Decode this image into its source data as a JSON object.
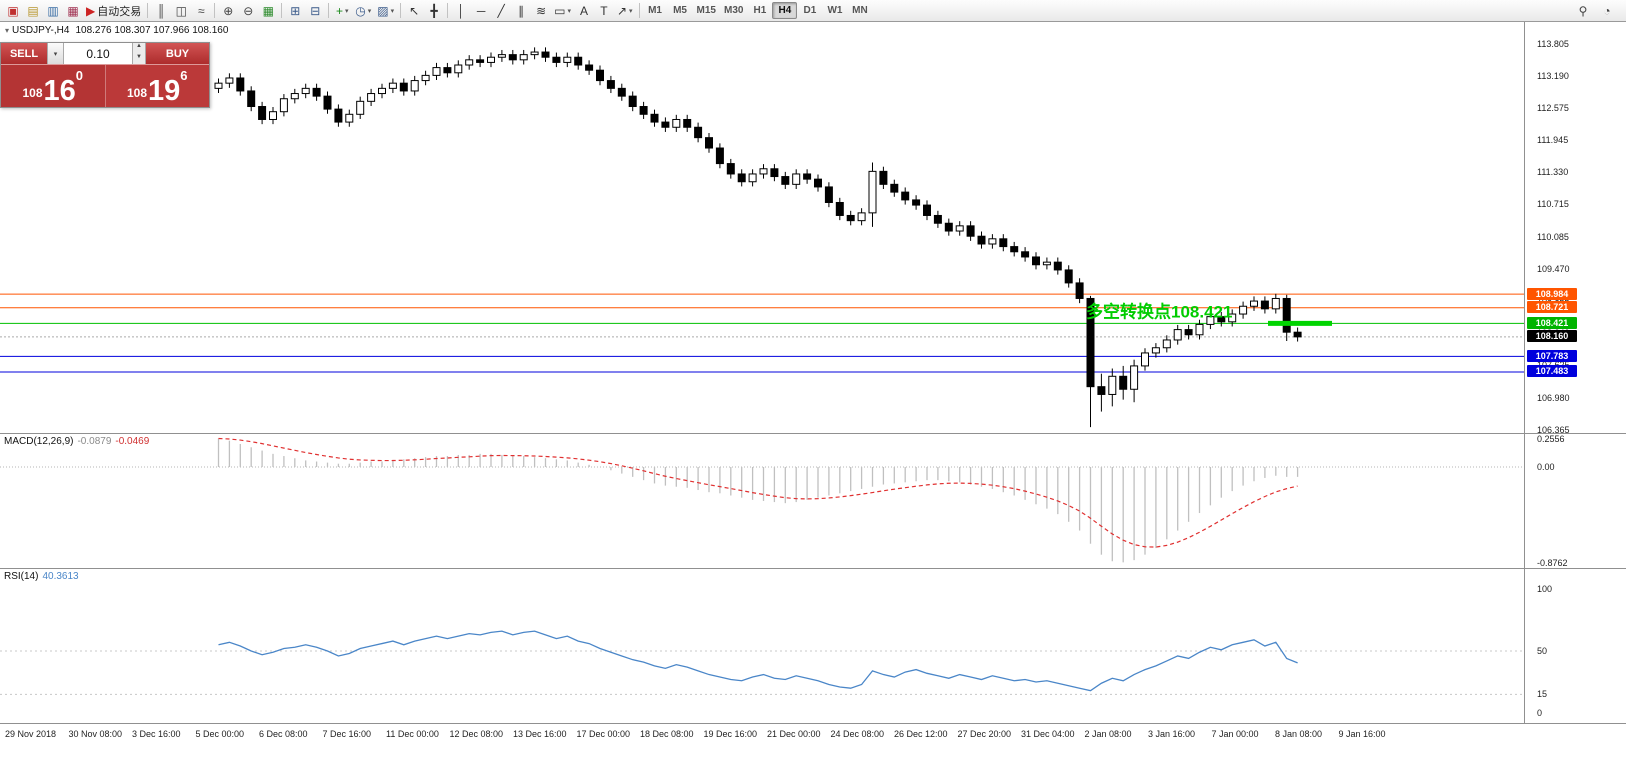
{
  "toolbar": {
    "items": [
      {
        "name": "new-order-icon",
        "glyph": "▣",
        "color": "#c03030"
      },
      {
        "name": "market-watch-icon",
        "glyph": "▤",
        "color": "#b8962e"
      },
      {
        "name": "navigator-icon",
        "glyph": "▥",
        "color": "#3a6ea5"
      },
      {
        "name": "terminal-icon",
        "glyph": "▦",
        "color": "#a03050"
      },
      {
        "name": "autotrading-button",
        "glyph": "▶",
        "color": "#cc2222",
        "label": "自动交易"
      },
      {
        "sep": true
      },
      {
        "name": "bar-chart-icon",
        "glyph": "║",
        "color": "#444444"
      },
      {
        "name": "candlestick-chart-icon",
        "glyph": "◫",
        "color": "#444444"
      },
      {
        "name": "line-chart-icon",
        "glyph": "≈",
        "color": "#444444"
      },
      {
        "sep": true
      },
      {
        "name": "zoom-in-icon",
        "glyph": "⊕",
        "color": "#444444"
      },
      {
        "name": "zoom-out-icon",
        "glyph": "⊖",
        "color": "#444444"
      },
      {
        "name": "tile-windows-icon",
        "glyph": "▦",
        "color": "#2a8a2a"
      },
      {
        "sep": true
      },
      {
        "name": "auto-scroll-icon",
        "glyph": "⊞",
        "color": "#3a5a8a"
      },
      {
        "name": "chart-shift-icon",
        "glyph": "⊟",
        "color": "#3a5a8a"
      },
      {
        "sep": true
      },
      {
        "name": "indicators-icon",
        "glyph": "+",
        "color": "#1a8a1a",
        "caret": true
      },
      {
        "name": "periods-icon",
        "glyph": "◷",
        "color": "#3a5a8a",
        "caret": true
      },
      {
        "name": "templates-icon",
        "glyph": "▨",
        "color": "#3a5a8a",
        "caret": true
      },
      {
        "sep": true
      },
      {
        "name": "cursor-icon",
        "glyph": "↖",
        "color": "#333333"
      },
      {
        "name": "crosshair-icon",
        "glyph": "╋",
        "color": "#333333"
      },
      {
        "sep": true
      },
      {
        "name": "vertical-line-icon",
        "glyph": "│",
        "color": "#333333"
      },
      {
        "name": "horizontal-line-icon",
        "glyph": "─",
        "color": "#333333"
      },
      {
        "name": "trendline-icon",
        "glyph": "╱",
        "color": "#333333"
      },
      {
        "name": "equidistant-channel-icon",
        "glyph": "∥",
        "color": "#333333"
      },
      {
        "name": "fibonacci-icon",
        "glyph": "≋",
        "color": "#333333"
      },
      {
        "name": "shapes-icon",
        "glyph": "▭",
        "color": "#333333",
        "caret": true
      },
      {
        "name": "text-icon",
        "glyph": "A",
        "color": "#333333"
      },
      {
        "name": "text-label-icon",
        "glyph": "T",
        "color": "#333333"
      },
      {
        "name": "arrows-icon",
        "glyph": "↗",
        "color": "#333333",
        "caret": true
      },
      {
        "sep": true
      }
    ],
    "timeframes": [
      "M1",
      "M5",
      "M15",
      "M30",
      "H1",
      "H4",
      "D1",
      "W1",
      "MN"
    ],
    "active_timeframe": "H4",
    "right_items": [
      {
        "name": "search-icon",
        "glyph": "⚲",
        "color": "#444444"
      },
      {
        "name": "notifications-icon",
        "glyph": "◔",
        "color": "#444444"
      }
    ]
  },
  "chart_header": {
    "symbol": "USDJPY-,H4",
    "ohlc": "108.276 108.307 107.966 108.160"
  },
  "trade_widget": {
    "sell_label": "SELL",
    "buy_label": "BUY",
    "lot": "0.10",
    "sell_price": {
      "main": "108",
      "pips": "16",
      "frac": "0"
    },
    "buy_price": {
      "main": "108",
      "pips": "19",
      "frac": "6"
    }
  },
  "annotation": {
    "text": "多空转换点108.421",
    "price": 108.421,
    "color": "#00cc00"
  },
  "chart_data": [
    {
      "type": "candlestick",
      "title": "USDJPY-,H4",
      "open_first": 112.95,
      "wick": 0.09,
      "closes": [
        113.05,
        113.15,
        112.9,
        112.6,
        112.35,
        112.5,
        112.75,
        112.85,
        112.95,
        112.8,
        112.55,
        112.3,
        112.45,
        112.7,
        112.85,
        112.95,
        113.05,
        112.9,
        113.1,
        113.2,
        113.35,
        113.25,
        113.4,
        113.5,
        113.45,
        113.55,
        113.6,
        113.5,
        113.6,
        113.65,
        113.55,
        113.45,
        113.55,
        113.4,
        113.3,
        113.1,
        112.95,
        112.8,
        112.6,
        112.45,
        112.3,
        112.2,
        112.35,
        112.2,
        112.0,
        111.8,
        111.5,
        111.3,
        111.15,
        111.3,
        111.4,
        111.25,
        111.1,
        111.3,
        111.2,
        111.05,
        110.75,
        110.5,
        110.4,
        110.55,
        111.35,
        111.1,
        110.95,
        110.8,
        110.7,
        110.5,
        110.35,
        110.2,
        110.3,
        110.1,
        109.95,
        110.05,
        109.9,
        109.8,
        109.7,
        109.55,
        109.6,
        109.45,
        109.2,
        108.9,
        107.2,
        107.05,
        107.4,
        107.15,
        107.6,
        107.85,
        107.95,
        108.1,
        108.3,
        108.2,
        108.4,
        108.55,
        108.45,
        108.6,
        108.75,
        108.85,
        108.7,
        108.9,
        108.25,
        108.16
      ],
      "overrides": {
        "60": [
          111.52,
          110.28
        ],
        "80": [
          108.95,
          106.42
        ],
        "81": [
          107.45,
          106.72
        ],
        "82": [
          107.55,
          106.82
        ],
        "83": [
          107.6,
          106.95
        ],
        "84": [
          107.72,
          106.9
        ],
        "98": [
          108.97,
          108.08
        ]
      },
      "ylim": [
        106.3,
        113.85
      ],
      "y_ticks": [
        "113.805",
        "113.190",
        "112.575",
        "111.945",
        "111.330",
        "110.715",
        "110.085",
        "109.470",
        "108.855",
        "108.240",
        "107.625",
        "106.980",
        "106.365"
      ],
      "hlines": [
        {
          "price": 108.984,
          "color": "#ff5500"
        },
        {
          "price": 108.721,
          "color": "#ff5500"
        },
        {
          "price": 108.421,
          "color": "#00c000"
        },
        {
          "price": 107.783,
          "color": "#0000dd"
        },
        {
          "price": 107.483,
          "color": "#0000dd"
        }
      ],
      "bid": 108.16,
      "badges": [
        {
          "label": "108.984",
          "color": "#ff5500"
        },
        {
          "label": "108.721",
          "color": "#ff5500"
        },
        {
          "label": "108.421",
          "color": "#00b400"
        },
        {
          "label": "108.160",
          "color": "#000000"
        },
        {
          "label": "107.783",
          "color": "#0000dd"
        },
        {
          "label": "107.483",
          "color": "#0000dd"
        }
      ]
    },
    {
      "type": "macd",
      "label": "MACD(12,26,9)",
      "value_main": "-0.0879",
      "value_signal": "-0.0469",
      "hist_color": "#c0c0c0",
      "signal_color": "#e03030",
      "scale_ticks": [
        "0.2556",
        "0.00",
        "-0.8762"
      ],
      "values": [
        0.26,
        0.24,
        0.21,
        0.18,
        0.15,
        0.12,
        0.1,
        0.08,
        0.06,
        0.05,
        0.04,
        0.03,
        0.03,
        0.04,
        0.05,
        0.05,
        0.06,
        0.07,
        0.08,
        0.09,
        0.1,
        0.1,
        0.11,
        0.11,
        0.12,
        0.12,
        0.11,
        0.1,
        0.1,
        0.09,
        0.08,
        0.07,
        0.06,
        0.04,
        0.02,
        0.0,
        -0.03,
        -0.06,
        -0.09,
        -0.12,
        -0.15,
        -0.17,
        -0.18,
        -0.19,
        -0.21,
        -0.23,
        -0.24,
        -0.26,
        -0.28,
        -0.3,
        -0.31,
        -0.32,
        -0.33,
        -0.32,
        -0.3,
        -0.28,
        -0.26,
        -0.24,
        -0.22,
        -0.2,
        -0.18,
        -0.16,
        -0.15,
        -0.14,
        -0.13,
        -0.12,
        -0.12,
        -0.13,
        -0.14,
        -0.16,
        -0.18,
        -0.2,
        -0.23,
        -0.26,
        -0.3,
        -0.34,
        -0.38,
        -0.43,
        -0.5,
        -0.58,
        -0.7,
        -0.8,
        -0.86,
        -0.87,
        -0.85,
        -0.8,
        -0.74,
        -0.66,
        -0.58,
        -0.5,
        -0.42,
        -0.35,
        -0.28,
        -0.22,
        -0.17,
        -0.13,
        -0.1,
        -0.08,
        -0.09,
        -0.09
      ]
    },
    {
      "type": "rsi",
      "label": "RSI(14)",
      "value": "40.3613",
      "line_color": "#4a86c8",
      "scale_ticks": [
        "100",
        "50",
        "15",
        "0"
      ],
      "levels": [
        50,
        15
      ],
      "values": [
        55,
        57,
        54,
        50,
        47,
        49,
        52,
        53,
        55,
        53,
        50,
        46,
        48,
        52,
        54,
        56,
        58,
        55,
        58,
        60,
        62,
        60,
        62,
        64,
        63,
        65,
        66,
        63,
        65,
        66,
        63,
        60,
        62,
        58,
        56,
        52,
        49,
        46,
        43,
        41,
        38,
        36,
        39,
        37,
        34,
        31,
        29,
        27,
        26,
        29,
        31,
        28,
        27,
        30,
        28,
        26,
        23,
        21,
        20,
        23,
        34,
        31,
        29,
        33,
        35,
        32,
        30,
        28,
        31,
        29,
        27,
        30,
        28,
        26,
        27,
        25,
        26,
        24,
        22,
        20,
        18,
        24,
        28,
        26,
        31,
        35,
        38,
        42,
        46,
        44,
        49,
        53,
        51,
        55,
        57,
        59,
        54,
        57,
        44,
        40.4
      ]
    }
  ],
  "time_axis": {
    "labels": [
      "29 Nov 2018",
      "30 Nov 08:00",
      "3 Dec 16:00",
      "5 Dec 00:00",
      "6 Dec 08:00",
      "7 Dec 16:00",
      "11 Dec 00:00",
      "12 Dec 08:00",
      "13 Dec 16:00",
      "17 Dec 00:00",
      "18 Dec 08:00",
      "19 Dec 16:00",
      "21 Dec 00:00",
      "24 Dec 08:00",
      "26 Dec 12:00",
      "27 Dec 20:00",
      "31 Dec 04:00",
      "2 Jan 08:00",
      "3 Jan 16:00",
      "7 Jan 00:00",
      "8 Jan 08:00",
      "9 Jan 16:00"
    ]
  }
}
